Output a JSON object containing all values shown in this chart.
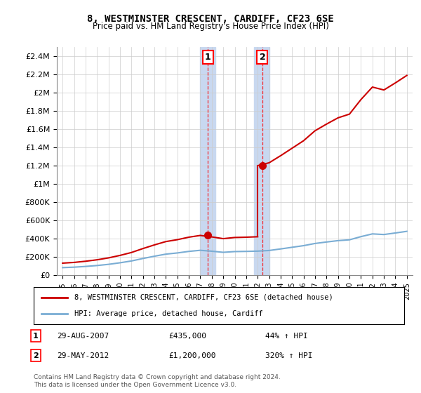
{
  "title": "8, WESTMINSTER CRESCENT, CARDIFF, CF23 6SE",
  "subtitle": "Price paid vs. HM Land Registry's House Price Index (HPI)",
  "legend_line1": "8, WESTMINSTER CRESCENT, CARDIFF, CF23 6SE (detached house)",
  "legend_line2": "HPI: Average price, detached house, Cardiff",
  "annotation1_date": "29-AUG-2007",
  "annotation1_price": "£435,000",
  "annotation1_hpi": "44% ↑ HPI",
  "annotation2_date": "29-MAY-2012",
  "annotation2_price": "£1,200,000",
  "annotation2_hpi": "320% ↑ HPI",
  "footer1": "Contains HM Land Registry data © Crown copyright and database right 2024.",
  "footer2": "This data is licensed under the Open Government Licence v3.0.",
  "hpi_color": "#7aadd4",
  "property_color": "#cc0000",
  "sale1_x": 2007.66,
  "sale1_y": 435000,
  "sale2_x": 2012.41,
  "sale2_y": 1200000,
  "ylim": [
    0,
    2500000
  ],
  "xlim_start": 1994.5,
  "xlim_end": 2025.5,
  "shade_color": "#c8d8f0",
  "yticks": [
    0,
    200000,
    400000,
    600000,
    800000,
    1000000,
    1200000,
    1400000,
    1600000,
    1800000,
    2000000,
    2200000,
    2400000
  ],
  "xticks": [
    1995,
    1996,
    1997,
    1998,
    1999,
    2000,
    2001,
    2002,
    2003,
    2004,
    2005,
    2006,
    2007,
    2008,
    2009,
    2010,
    2011,
    2012,
    2013,
    2014,
    2015,
    2016,
    2017,
    2018,
    2019,
    2020,
    2021,
    2022,
    2023,
    2024,
    2025
  ],
  "hpi_years": [
    1995,
    1996,
    1997,
    1998,
    1999,
    2000,
    2001,
    2002,
    2003,
    2004,
    2005,
    2006,
    2007,
    2008,
    2009,
    2010,
    2011,
    2012,
    2013,
    2014,
    2015,
    2016,
    2017,
    2018,
    2019,
    2020,
    2021,
    2022,
    2023,
    2024,
    2025
  ],
  "hpi_values": [
    82000,
    87000,
    95000,
    105000,
    118000,
    135000,
    155000,
    182000,
    207000,
    230000,
    243000,
    260000,
    272000,
    262000,
    250000,
    258000,
    260000,
    263000,
    270000,
    287000,
    305000,
    323000,
    347000,
    363000,
    378000,
    387000,
    422000,
    452000,
    445000,
    462000,
    480000
  ],
  "hpi_2007": 272000,
  "hpi_2012": 263000
}
